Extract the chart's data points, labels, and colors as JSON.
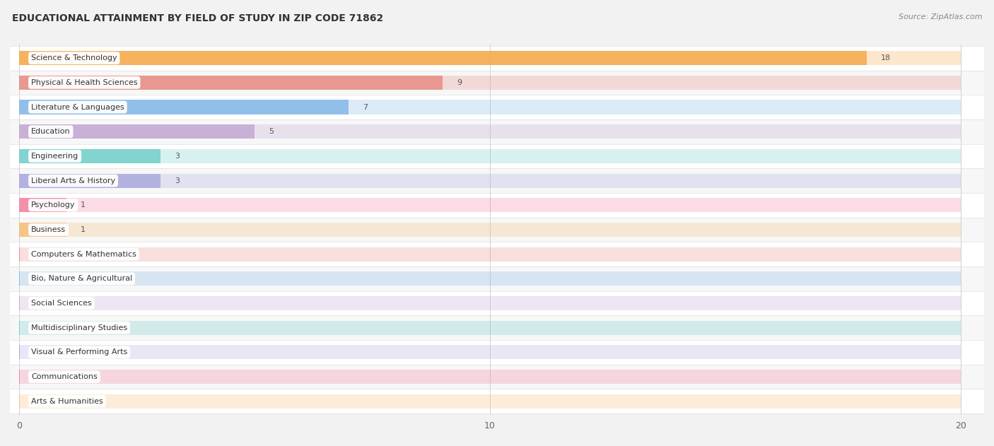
{
  "title": "EDUCATIONAL ATTAINMENT BY FIELD OF STUDY IN ZIP CODE 71862",
  "source": "Source: ZipAtlas.com",
  "categories": [
    "Science & Technology",
    "Physical & Health Sciences",
    "Literature & Languages",
    "Education",
    "Engineering",
    "Liberal Arts & History",
    "Psychology",
    "Business",
    "Computers & Mathematics",
    "Bio, Nature & Agricultural",
    "Social Sciences",
    "Multidisciplinary Studies",
    "Visual & Performing Arts",
    "Communications",
    "Arts & Humanities"
  ],
  "values": [
    18,
    9,
    7,
    5,
    3,
    3,
    1,
    1,
    0,
    0,
    0,
    0,
    0,
    0,
    0
  ],
  "bar_colors": [
    "#F5A94A",
    "#E88C85",
    "#85B8E8",
    "#C3A8D4",
    "#72CFCA",
    "#AAAADE",
    "#F582A0",
    "#F5C07A",
    "#E88C85",
    "#85B8E8",
    "#C3A8D4",
    "#72CFCA",
    "#AAAADE",
    "#F582A0",
    "#F5C07A"
  ],
  "xlim_max": 20,
  "xticks": [
    0,
    10,
    20
  ],
  "background_color": "#f2f2f2",
  "row_color_even": "#ffffff",
  "row_color_odd": "#f7f7f7",
  "title_fontsize": 10,
  "source_fontsize": 8,
  "label_fontsize": 8,
  "value_fontsize": 8,
  "bar_height": 0.58,
  "bar_alpha": 0.85,
  "bg_bar_alpha": 0.28
}
